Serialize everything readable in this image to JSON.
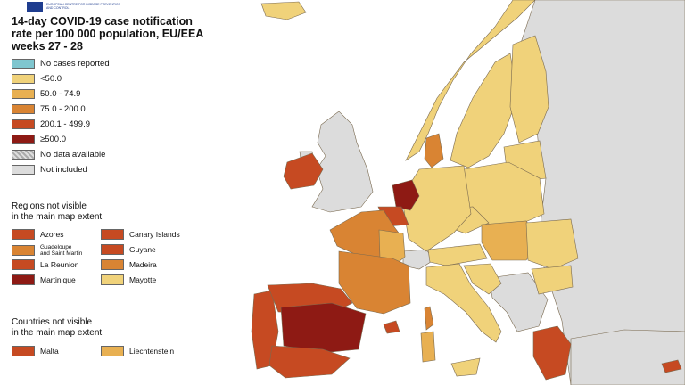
{
  "title": "14-day COVID-19 case notification rate per 100 000 population, EU/EEA weeks 27 - 28",
  "logo": {
    "name": "logo-ecdc",
    "text": "EUROPEAN CENTRE FOR DISEASE PREVENTION AND CONTROL"
  },
  "colors": {
    "no_cases": "#7fc6cf",
    "lt50": "#f0d27a",
    "c50_75": "#e8b052",
    "c75_200": "#d98433",
    "c200_500": "#c64a22",
    "ge500": "#8e1a14",
    "not_included": "#dcdcdc",
    "sea": "#ffffff",
    "border": "#7a6a50"
  },
  "legend": [
    {
      "label": "No cases reported",
      "color": "#7fc6cf"
    },
    {
      "label": "<50.0",
      "color": "#f0d27a"
    },
    {
      "label": "50.0 - 74.9",
      "color": "#e8b052"
    },
    {
      "label": "75.0 - 200.0",
      "color": "#d98433"
    },
    {
      "label": "200.1 - 499.9",
      "color": "#c64a22"
    },
    {
      "label": "≥500.0",
      "color": "#8e1a14"
    },
    {
      "label": "No data available",
      "color": "hatch"
    },
    {
      "label": "Not included",
      "color": "#dcdcdc"
    }
  ],
  "regions_heading": "Regions not visible in the main map extent",
  "regions_heading_lines": [
    "Regions not visible",
    "in the main map extent"
  ],
  "regions": [
    {
      "label": "Azores",
      "color": "#c64a22"
    },
    {
      "label": "Canary Islands",
      "color": "#c64a22"
    },
    {
      "label": "Guadeloupe and Saint Martin",
      "lines": [
        "Guadeloupe",
        "and Saint Martin"
      ],
      "color": "#d98433"
    },
    {
      "label": "Guyane",
      "color": "#c64a22"
    },
    {
      "label": "La Reunion",
      "color": "#c64a22"
    },
    {
      "label": "Madeira",
      "color": "#d98433"
    },
    {
      "label": "Martinique",
      "color": "#8e1a14"
    },
    {
      "label": "Mayotte",
      "color": "#f0d27a"
    }
  ],
  "countries_heading_lines": [
    "Countries not visible",
    "in the main map extent"
  ],
  "countries": [
    {
      "label": "Malta",
      "color": "#c64a22"
    },
    {
      "label": "Liechtenstein",
      "color": "#e8b052"
    }
  ]
}
